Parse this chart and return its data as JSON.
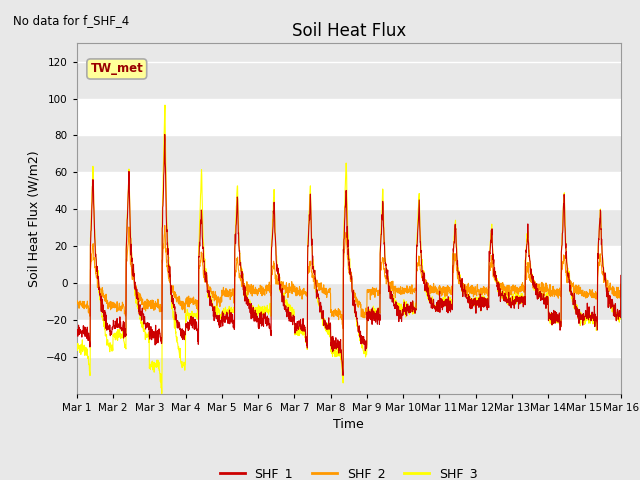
{
  "title": "Soil Heat Flux",
  "subtitle": "No data for f_SHF_4",
  "ylabel": "Soil Heat Flux (W/m2)",
  "xlabel": "Time",
  "ylim": [
    -60,
    130
  ],
  "yticks": [
    -40,
    -20,
    0,
    20,
    40,
    60,
    80,
    100,
    120
  ],
  "bg_color": "#e8e8e8",
  "plot_bg_color": "#e8e8e8",
  "white_band_color": "#f5f5f5",
  "line_colors": {
    "SHF_1": "#cc0000",
    "SHF_2": "#ff9900",
    "SHF_3": "#ffff00"
  },
  "legend_box_color": "#ffff99",
  "legend_box_border": "#aaaaaa",
  "legend_label": "TW_met",
  "xtick_labels": [
    "Mar 1",
    "Mar 2",
    "Mar 3",
    "Mar 4",
    "Mar 5",
    "Mar 6",
    "Mar 7",
    "Mar 8",
    "Mar 9",
    "Mar 10",
    "Mar 11",
    "Mar 12",
    "Mar 13",
    "Mar 14",
    "Mar 15",
    "Mar 16"
  ],
  "n_days": 15,
  "pts_per_day": 144
}
